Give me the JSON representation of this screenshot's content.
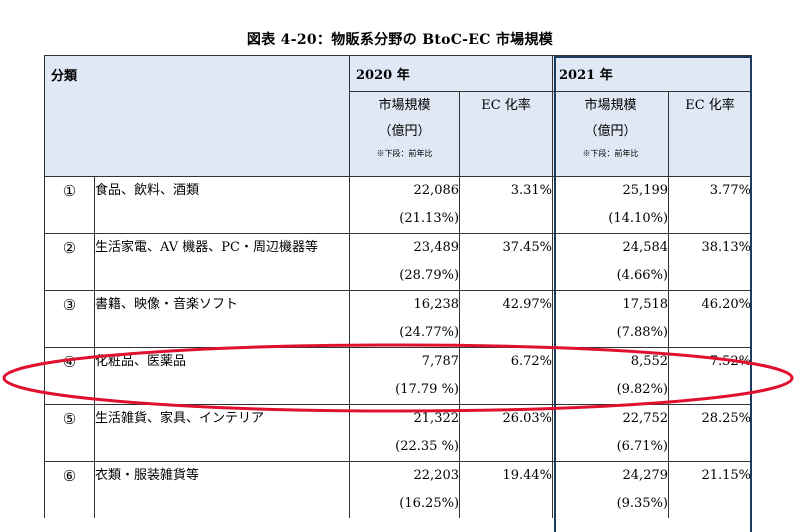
{
  "title": "図表 4-20：物販系分野の BtoC-EC 市場規模",
  "header": {
    "category": "分類",
    "year2020": "2020 年",
    "year2021": "2021 年",
    "market_size": "市場規模",
    "unit": "（億円）",
    "note": "※下段：前年比",
    "ec_rate": "EC 化率"
  },
  "rows": [
    {
      "mark": "①",
      "name": "食品、飲料、酒類",
      "v2020": "22,086",
      "g2020": "(21.13%)",
      "r2020": "3.31%",
      "v2021": "25,199",
      "g2021": "(14.10%)",
      "r2021": "3.77%"
    },
    {
      "mark": "②",
      "name": "生活家電、AV 機器、PC・周辺機器等",
      "v2020": "23,489",
      "g2020": "(28.79%)",
      "r2020": "37.45%",
      "v2021": "24,584",
      "g2021": "(4.66%)",
      "r2021": "38.13%"
    },
    {
      "mark": "③",
      "name": "書籍、映像・音楽ソフト",
      "v2020": "16,238",
      "g2020": "(24.77%)",
      "r2020": "42.97%",
      "v2021": "17,518",
      "g2021": "(7.88%)",
      "r2021": "46.20%"
    },
    {
      "mark": "④",
      "name": "化粧品、医薬品",
      "v2020": "7,787",
      "g2020": "(17.79 %)",
      "r2020": "6.72%",
      "v2021": "8,552",
      "g2021": "(9.82%)",
      "r2021": "7.52%"
    },
    {
      "mark": "⑤",
      "name": "生活雑貨、家具、インテリア",
      "v2020": "21,322",
      "g2020": "(22.35 %)",
      "r2020": "26.03%",
      "v2021": "22,752",
      "g2021": "(6.71%)",
      "r2021": "28.25%"
    },
    {
      "mark": "⑥",
      "name": "衣類・服装雑貨等",
      "v2020": "22,203",
      "g2020": "(16.25%)",
      "r2020": "19.44%",
      "v2021": "24,279",
      "g2021": "(9.35%)",
      "r2021": "21.15%"
    }
  ],
  "colors": {
    "header_bg": "#dfe8f4",
    "highlight_ellipse": "#e0112f",
    "year_box": "#1d3a5f"
  }
}
